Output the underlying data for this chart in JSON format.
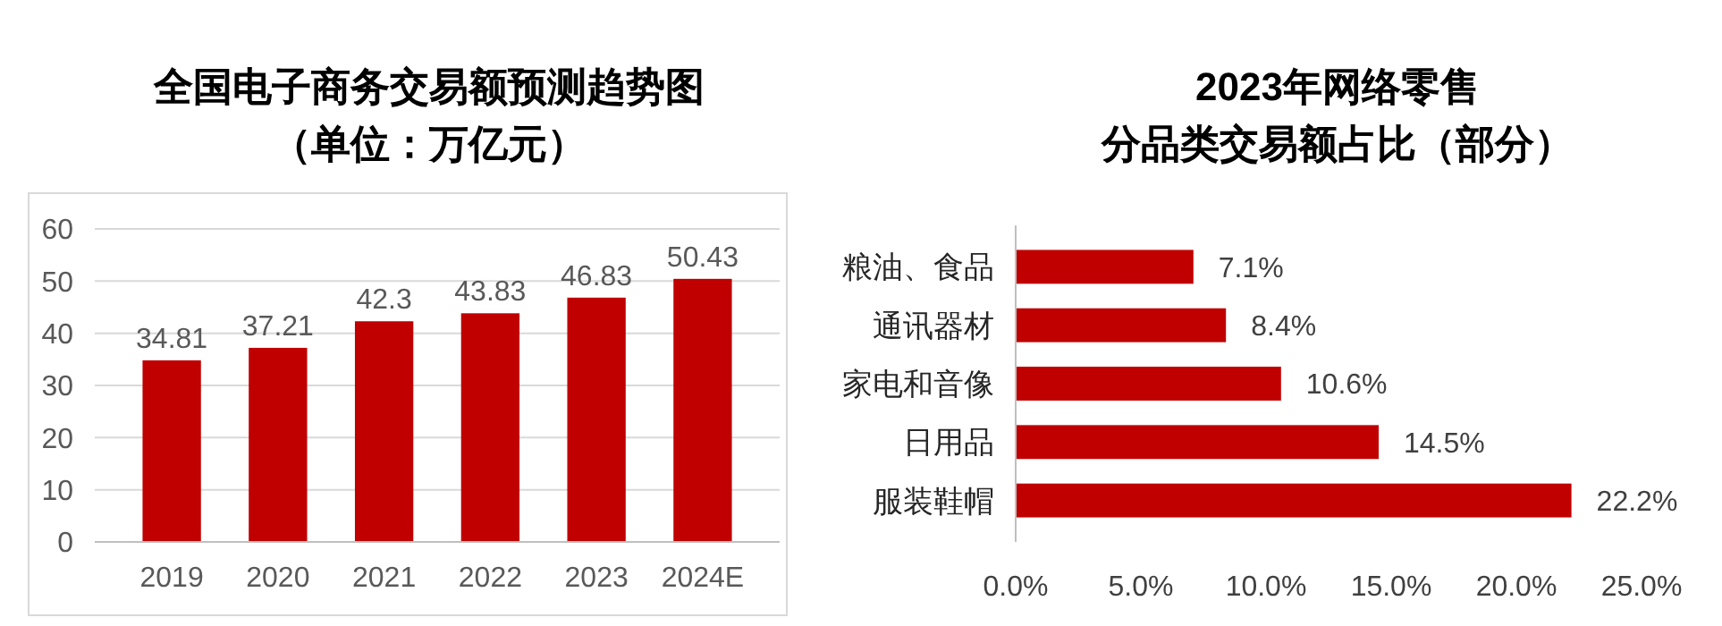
{
  "chart_data": [
    {
      "type": "bar",
      "title": "全国电子商务交易额预测趋势图",
      "subtitle": "（单位：万亿元）",
      "categories": [
        "2019",
        "2020",
        "2021",
        "2022",
        "2023",
        "2024E"
      ],
      "values": [
        34.81,
        37.21,
        42.3,
        43.83,
        46.83,
        50.43
      ],
      "color": "#c00000",
      "ylim": [
        0,
        60
      ],
      "yticks": [
        0,
        10,
        20,
        30,
        40,
        50,
        60
      ],
      "grid": "y",
      "data_labels": true
    },
    {
      "type": "bar",
      "orientation": "horizontal",
      "title": "2023年网络零售",
      "subtitle": "分品类交易额占比（部分）",
      "categories": [
        "粮油、食品",
        "通讯器材",
        "家电和音像",
        "日用品",
        "服装鞋帽"
      ],
      "values": [
        7.1,
        8.4,
        10.6,
        14.5,
        22.2
      ],
      "value_labels": [
        "7.1%",
        "8.4%",
        "10.6%",
        "14.5%",
        "22.2%"
      ],
      "color": "#c00000",
      "xlim": [
        0,
        25
      ],
      "xticks": [
        {
          "value": 0,
          "label": "0.0%"
        },
        {
          "value": 5,
          "label": "5.0%"
        },
        {
          "value": 10,
          "label": "10.0%"
        },
        {
          "value": 15,
          "label": "15.0%"
        },
        {
          "value": 20,
          "label": "20.0%"
        },
        {
          "value": 25,
          "label": "25.0%"
        }
      ]
    }
  ]
}
